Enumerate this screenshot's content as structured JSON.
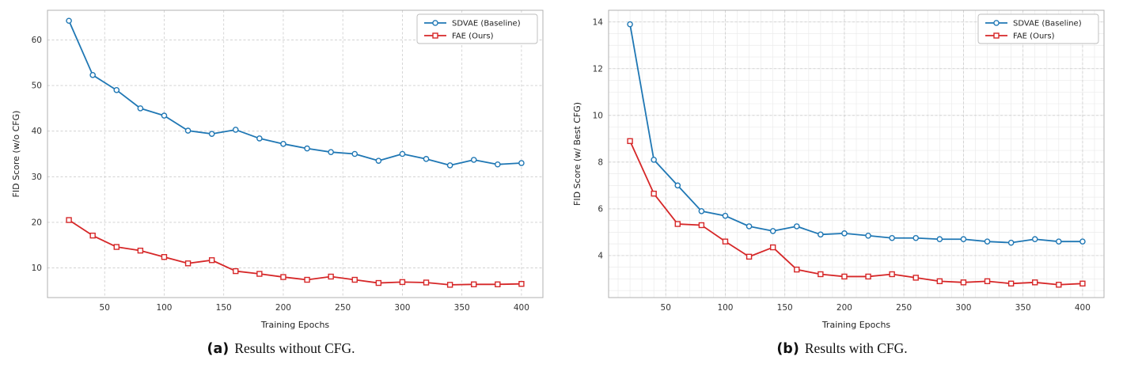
{
  "page": {
    "background": "#ffffff"
  },
  "figures": [
    {
      "caption_label": "(a)",
      "caption_text": "Results without CFG."
    },
    {
      "caption_label": "(b)",
      "caption_text": "Results with CFG."
    }
  ],
  "colors": {
    "baseline_blue": "#1f77b4",
    "ours_red": "#d62728",
    "grid_major": "#cccccc",
    "grid_minor": "#ebebeb",
    "spine": "#b0b0b0",
    "text": "#333333"
  },
  "chart_data": [
    {
      "type": "line",
      "title": "",
      "xlabel": "Training Epochs",
      "ylabel": "FID Score (w/o CFG)",
      "x": [
        20,
        40,
        60,
        80,
        100,
        120,
        140,
        160,
        180,
        200,
        220,
        240,
        260,
        280,
        300,
        320,
        340,
        360,
        380,
        400
      ],
      "series": [
        {
          "name": "SDVAE (Baseline)",
          "color": "#1f77b4",
          "marker": "circle",
          "values": [
            64.2,
            52.3,
            49.0,
            45.0,
            43.4,
            40.1,
            39.4,
            40.3,
            38.4,
            37.2,
            36.2,
            35.4,
            35.0,
            33.5,
            35.0,
            33.9,
            32.5,
            33.7,
            32.7,
            33.0
          ]
        },
        {
          "name": "FAE (Ours)",
          "color": "#d62728",
          "marker": "square",
          "values": [
            20.5,
            17.1,
            14.6,
            13.8,
            12.4,
            11.0,
            11.7,
            9.3,
            8.7,
            8.0,
            7.4,
            8.1,
            7.4,
            6.7,
            6.9,
            6.8,
            6.3,
            6.4,
            6.4,
            6.5
          ]
        }
      ],
      "xlim": [
        2,
        418
      ],
      "ylim": [
        3.5,
        66.5
      ],
      "xticks": [
        50,
        100,
        150,
        200,
        250,
        300,
        350,
        400
      ],
      "yticks": [
        10,
        20,
        30,
        40,
        50,
        60
      ],
      "grid": true,
      "minor_grid": null,
      "legend_position": "top-right"
    },
    {
      "type": "line",
      "title": "",
      "xlabel": "Training Epochs",
      "ylabel": "FID Score (w/ Best CFG)",
      "x": [
        20,
        40,
        60,
        80,
        100,
        120,
        140,
        160,
        180,
        200,
        220,
        240,
        260,
        280,
        300,
        320,
        340,
        360,
        380,
        400
      ],
      "series": [
        {
          "name": "SDVAE (Baseline)",
          "color": "#1f77b4",
          "marker": "circle",
          "values": [
            13.9,
            8.1,
            7.0,
            5.9,
            5.7,
            5.25,
            5.05,
            5.25,
            4.9,
            4.95,
            4.85,
            4.75,
            4.75,
            4.7,
            4.7,
            4.6,
            4.55,
            4.7,
            4.6,
            4.6
          ]
        },
        {
          "name": "FAE (Ours)",
          "color": "#d62728",
          "marker": "square",
          "values": [
            8.9,
            6.65,
            5.35,
            5.3,
            4.6,
            3.95,
            4.35,
            3.4,
            3.2,
            3.1,
            3.1,
            3.2,
            3.05,
            2.9,
            2.85,
            2.9,
            2.8,
            2.85,
            2.75,
            2.8
          ]
        }
      ],
      "xlim": [
        2,
        418
      ],
      "ylim": [
        2.2,
        14.5
      ],
      "xticks": [
        50,
        100,
        150,
        200,
        250,
        300,
        350,
        400
      ],
      "yticks": [
        4,
        6,
        8,
        10,
        12,
        14
      ],
      "grid": true,
      "minor_grid": {
        "x_step": 10,
        "y_step": 0.5
      },
      "legend_position": "top-right"
    }
  ]
}
